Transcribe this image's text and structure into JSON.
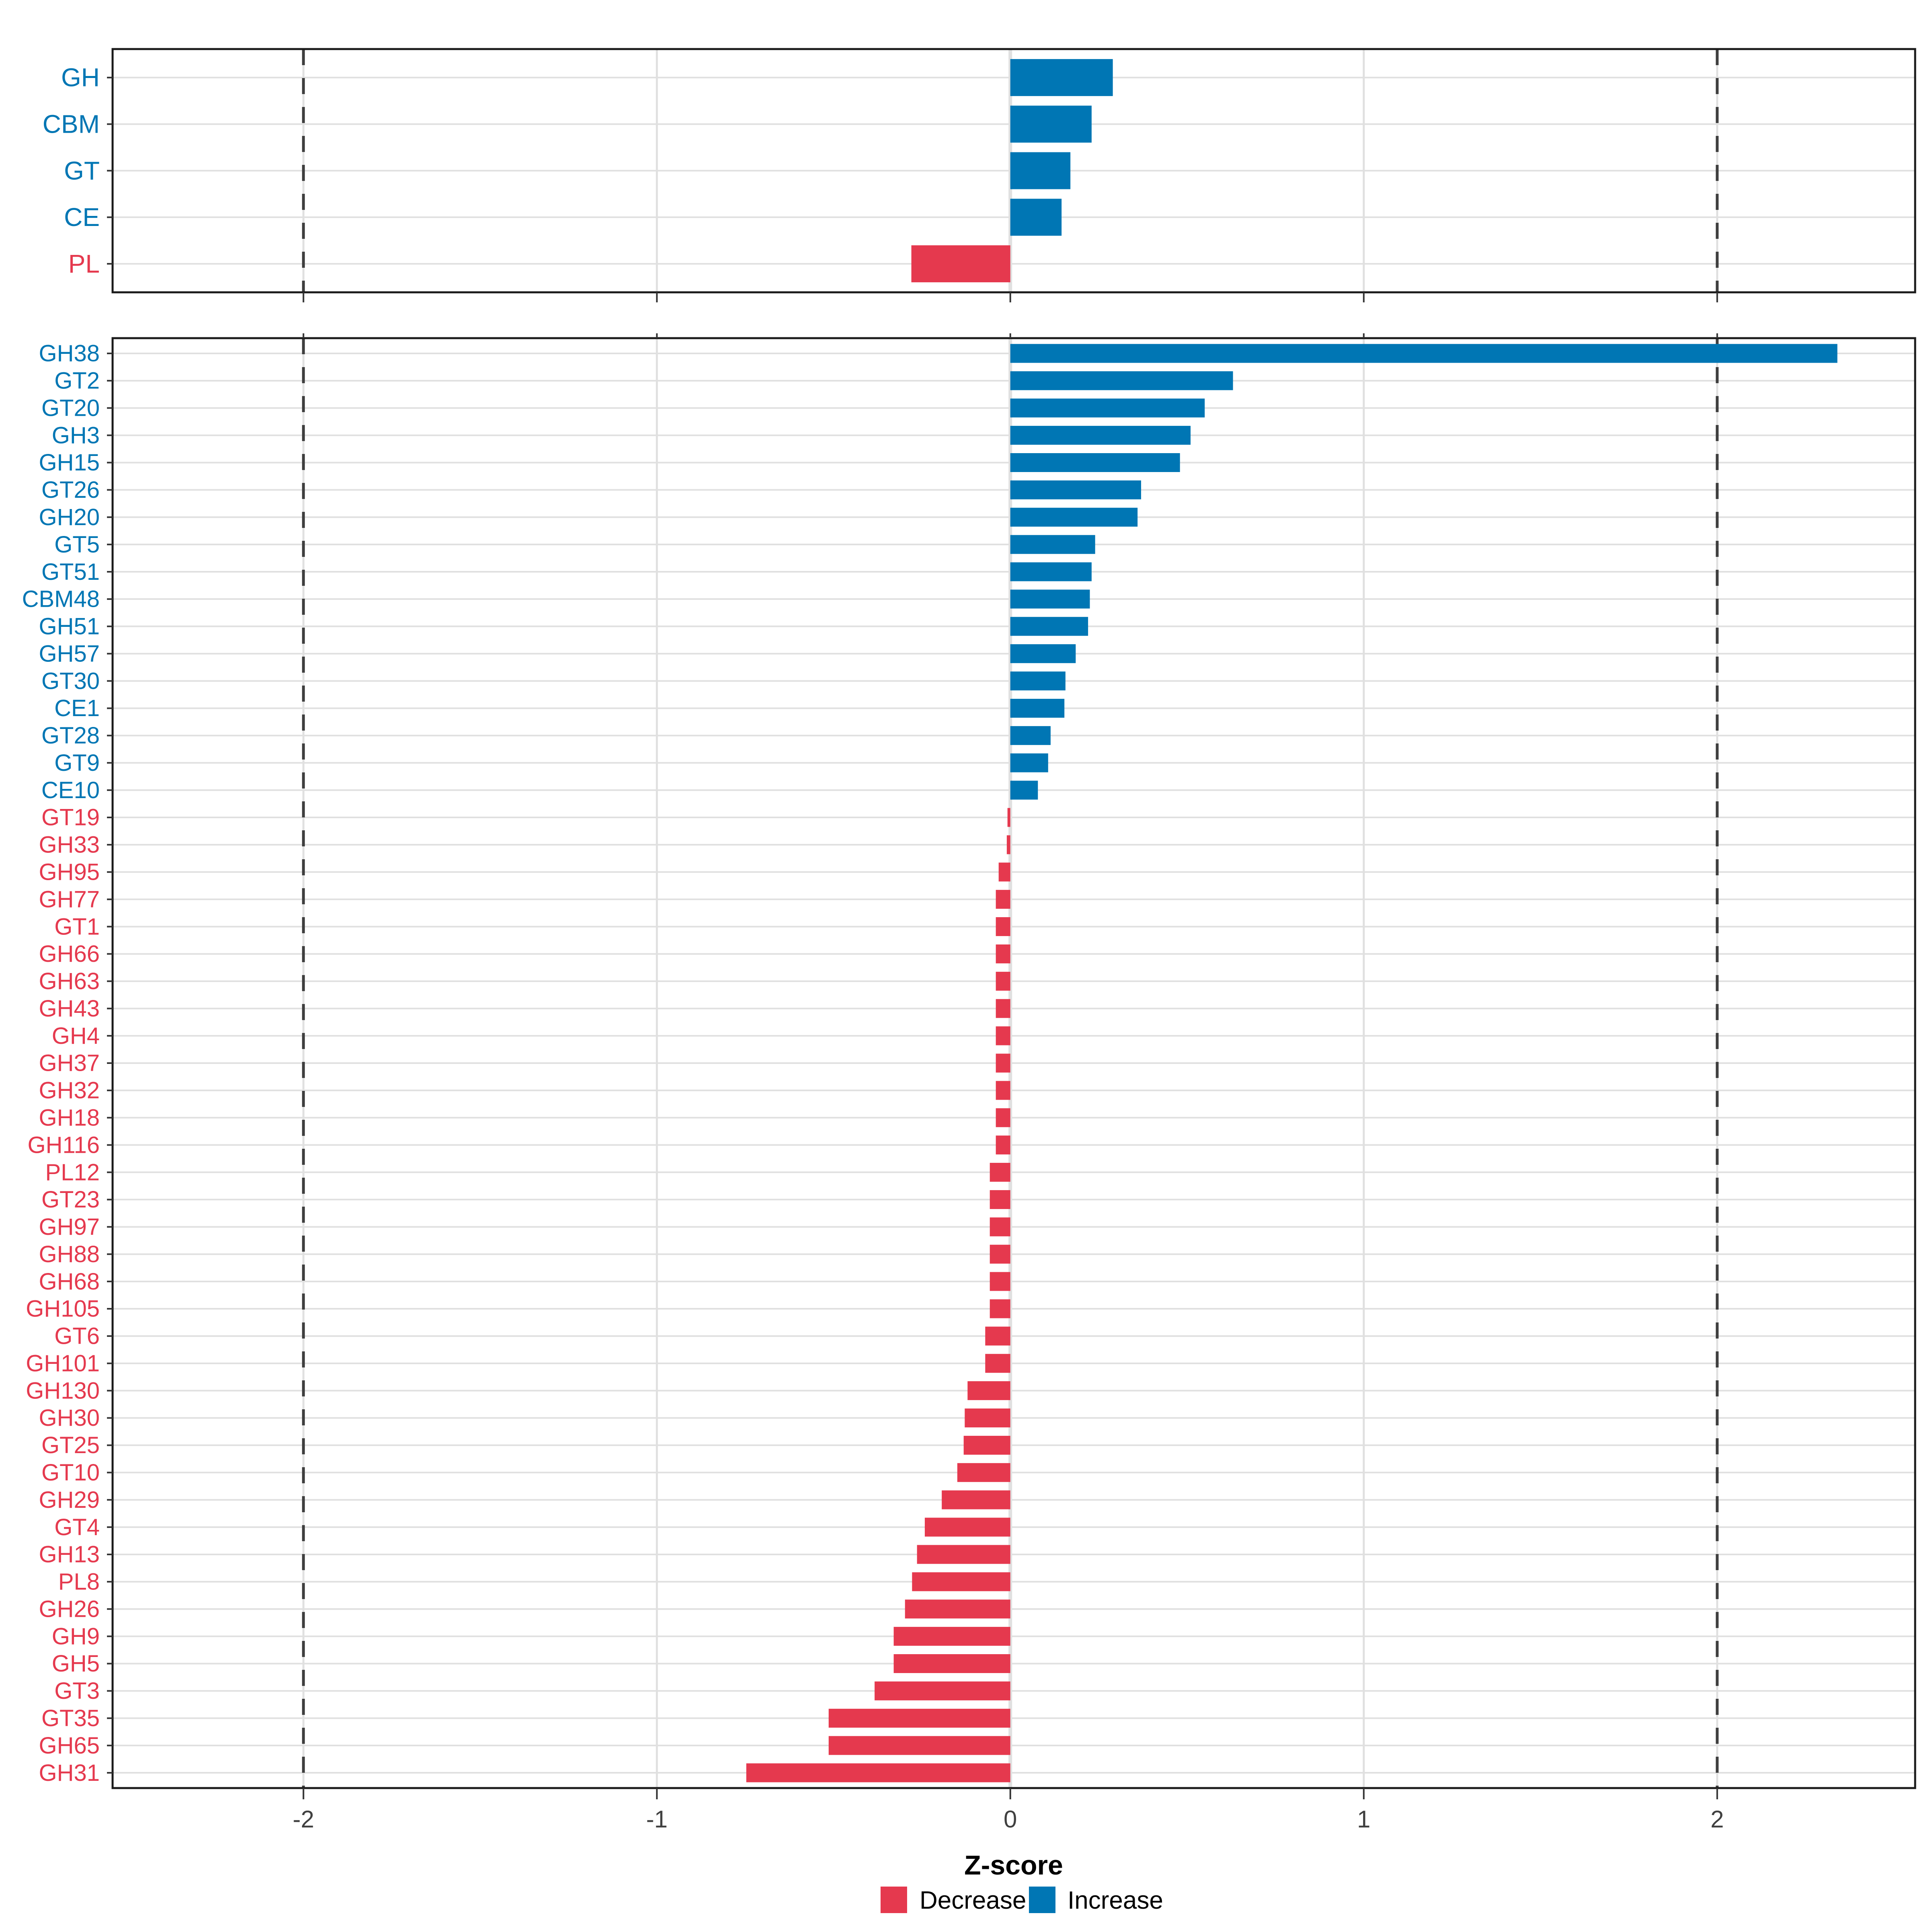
{
  "colors": {
    "increase": "#0076b4",
    "decrease": "#e5394e",
    "grid": "#e0e0e0",
    "dashed_line": "#3f3f3f",
    "axis_text": "#404040",
    "border": "#1a1a1a",
    "tick": "#333333",
    "legend_text": "#000000"
  },
  "axis": {
    "xlabel": "Z-score",
    "xticks": [
      -2,
      -1,
      0,
      1,
      2
    ],
    "xlim": [
      -2.54,
      2.56
    ],
    "dashed_at": [
      -2,
      2
    ]
  },
  "legend": {
    "items": [
      {
        "label": "Decrease",
        "color_key": "decrease"
      },
      {
        "label": "Increase",
        "color_key": "increase"
      }
    ]
  },
  "chart_data": [
    {
      "type": "bar",
      "panel": "cazyme-class-summary",
      "orientation": "horizontal",
      "xlabel": "Z-score",
      "xlim": [
        -2.54,
        2.56
      ],
      "grid": true,
      "categories": [
        "GH",
        "CBM",
        "GT",
        "CE",
        "PL"
      ],
      "values": [
        0.29,
        0.23,
        0.17,
        0.145,
        -0.28
      ],
      "directions": [
        "Increase",
        "Increase",
        "Increase",
        "Increase",
        "Decrease"
      ]
    },
    {
      "type": "bar",
      "panel": "cazyme-family-detail",
      "orientation": "horizontal",
      "xlabel": "Z-score",
      "xlim": [
        -2.54,
        2.56
      ],
      "grid": true,
      "categories": [
        "GH38",
        "GT2",
        "GT20",
        "GH3",
        "GH15",
        "GT26",
        "GH20",
        "GT5",
        "GT51",
        "CBM48",
        "GH51",
        "GH57",
        "GT30",
        "CE1",
        "GT28",
        "GT9",
        "CE10",
        "GT19",
        "GH33",
        "GH95",
        "GH77",
        "GT1",
        "GH66",
        "GH63",
        "GH43",
        "GH4",
        "GH37",
        "GH32",
        "GH18",
        "GH116",
        "PL12",
        "GT23",
        "GH97",
        "GH88",
        "GH68",
        "GH105",
        "GT6",
        "GH101",
        "GH130",
        "GH30",
        "GT25",
        "GT10",
        "GH29",
        "GT4",
        "GH13",
        "PL8",
        "GH26",
        "GH9",
        "GH5",
        "GT3",
        "GT35",
        "GH65",
        "GH31"
      ],
      "values": [
        2.34,
        0.63,
        0.55,
        0.51,
        0.48,
        0.37,
        0.36,
        0.24,
        0.23,
        0.225,
        0.22,
        0.185,
        0.156,
        0.153,
        0.114,
        0.107,
        0.078,
        -0.008,
        -0.01,
        -0.033,
        -0.041,
        -0.041,
        -0.041,
        -0.041,
        -0.041,
        -0.041,
        -0.041,
        -0.041,
        -0.041,
        -0.041,
        -0.058,
        -0.058,
        -0.058,
        -0.058,
        -0.058,
        -0.058,
        -0.071,
        -0.071,
        -0.121,
        -0.129,
        -0.132,
        -0.15,
        -0.194,
        -0.242,
        -0.264,
        -0.278,
        -0.298,
        -0.33,
        -0.33,
        -0.384,
        -0.514,
        -0.514,
        -0.747
      ],
      "directions": [
        "Increase",
        "Increase",
        "Increase",
        "Increase",
        "Increase",
        "Increase",
        "Increase",
        "Increase",
        "Increase",
        "Increase",
        "Increase",
        "Increase",
        "Increase",
        "Increase",
        "Increase",
        "Increase",
        "Increase",
        "Decrease",
        "Decrease",
        "Decrease",
        "Decrease",
        "Decrease",
        "Decrease",
        "Decrease",
        "Decrease",
        "Decrease",
        "Decrease",
        "Decrease",
        "Decrease",
        "Decrease",
        "Decrease",
        "Decrease",
        "Decrease",
        "Decrease",
        "Decrease",
        "Decrease",
        "Decrease",
        "Decrease",
        "Decrease",
        "Decrease",
        "Decrease",
        "Decrease",
        "Decrease",
        "Decrease",
        "Decrease",
        "Decrease",
        "Decrease",
        "Decrease",
        "Decrease",
        "Decrease",
        "Decrease",
        "Decrease",
        "Decrease"
      ]
    }
  ]
}
